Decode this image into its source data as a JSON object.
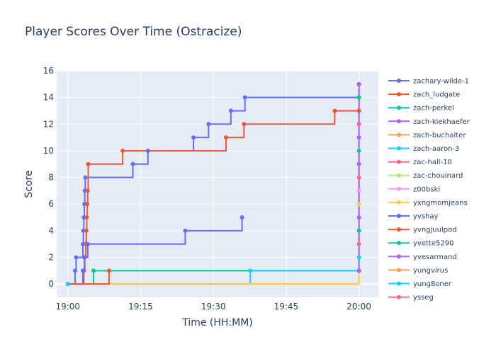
{
  "chart_data": {
    "type": "line",
    "line_shape": "step",
    "title": "Player Scores Over Time (Ostracize)",
    "xlabel": "Time (HH:MM)",
    "ylabel": "Score",
    "x_tick_labels": [
      "19:00",
      "19:15",
      "19:30",
      "19:45",
      "20:00"
    ],
    "x_tick_values": [
      0,
      15,
      30,
      45,
      60
    ],
    "xlim": [
      -2.3,
      64
    ],
    "ylim": [
      -1,
      16
    ],
    "y_ticks": [
      0,
      2,
      4,
      6,
      8,
      10,
      12,
      14,
      16
    ],
    "grid": true,
    "legend_position": "right",
    "background": "#e5ecf6",
    "series": [
      {
        "name": "zachary-wilde-1",
        "color": "#636efa",
        "points": [
          [
            0,
            0
          ],
          [
            1.5,
            1
          ],
          [
            1.7,
            2
          ],
          [
            3.1,
            3
          ],
          [
            3.2,
            4
          ],
          [
            3.3,
            5
          ],
          [
            3.4,
            6
          ],
          [
            3.5,
            7
          ],
          [
            3.6,
            8
          ],
          [
            13.4,
            9
          ],
          [
            16.5,
            10
          ],
          [
            25.9,
            11
          ],
          [
            29.0,
            12
          ],
          [
            33.6,
            13
          ],
          [
            36.5,
            14
          ],
          [
            60,
            14
          ],
          [
            60,
            15
          ]
        ]
      },
      {
        "name": "zach_ludgate",
        "color": "#ef553b",
        "points": [
          [
            0,
            0
          ],
          [
            3.3,
            1
          ],
          [
            3.5,
            2
          ],
          [
            3.7,
            3
          ],
          [
            3.8,
            4
          ],
          [
            3.9,
            5
          ],
          [
            4.0,
            6
          ],
          [
            4.1,
            7
          ],
          [
            4.2,
            9
          ],
          [
            11.3,
            10
          ],
          [
            32.6,
            11
          ],
          [
            36.3,
            12
          ],
          [
            55.0,
            13
          ],
          [
            60,
            13
          ],
          [
            60,
            15
          ]
        ]
      },
      {
        "name": "zach-perkel",
        "color": "#00cc96",
        "points": [
          [
            0,
            0
          ],
          [
            5.3,
            1
          ],
          [
            60,
            1
          ],
          [
            60,
            2
          ],
          [
            60,
            4
          ],
          [
            60,
            10
          ],
          [
            60,
            14
          ]
        ]
      },
      {
        "name": "zach-kiekhaefer",
        "color": "#ab63fa",
        "points": [
          [
            60,
            1
          ],
          [
            60,
            5
          ],
          [
            60,
            7
          ],
          [
            60,
            9
          ],
          [
            60,
            11
          ],
          [
            60,
            12
          ],
          [
            60,
            15
          ]
        ]
      },
      {
        "name": "zach-buchalter",
        "color": "#ffa15a",
        "points": [
          [
            0,
            0
          ],
          [
            60,
            3
          ],
          [
            60,
            6
          ]
        ]
      },
      {
        "name": "zach-aaron-3",
        "color": "#19d3f3",
        "points": [
          [
            0,
            0
          ],
          [
            37.6,
            1
          ],
          [
            60,
            1
          ],
          [
            60,
            2
          ]
        ]
      },
      {
        "name": "zac-hall-10",
        "color": "#ff6692",
        "points": [
          [
            60,
            3
          ],
          [
            60,
            8
          ]
        ]
      },
      {
        "name": "zac-chouinard",
        "color": "#b6e880",
        "points": [
          [
            60,
            6
          ]
        ]
      },
      {
        "name": "z00bski",
        "color": "#ff97ff",
        "points": [
          [
            60,
            7
          ]
        ]
      },
      {
        "name": "yxngmomjeans",
        "color": "#fecb52",
        "points": [
          [
            0,
            0
          ],
          [
            60,
            6
          ]
        ]
      },
      {
        "name": "yvshay",
        "color": "#636efa",
        "points": [
          [
            0,
            0
          ],
          [
            3.1,
            1
          ],
          [
            3.4,
            2
          ],
          [
            4.1,
            3
          ],
          [
            24.2,
            4
          ],
          [
            35.9,
            5
          ]
        ]
      },
      {
        "name": "yvngjuulpod",
        "color": "#ef553b",
        "points": [
          [
            0,
            0
          ],
          [
            8.5,
            1
          ]
        ]
      },
      {
        "name": "yvette5290",
        "color": "#00cc96",
        "points": [
          [
            60,
            4
          ]
        ]
      },
      {
        "name": "yvesarmand",
        "color": "#ab63fa",
        "points": [
          [
            60,
            1
          ],
          [
            60,
            9
          ]
        ]
      },
      {
        "name": "yungvirus",
        "color": "#ffa15a",
        "points": [
          [
            0,
            0
          ]
        ]
      },
      {
        "name": "yung8oner",
        "color": "#19d3f3",
        "points": [
          [
            0,
            0
          ]
        ]
      },
      {
        "name": "ysseg",
        "color": "#ff6692",
        "points": [
          [
            60,
            12
          ]
        ]
      }
    ]
  }
}
